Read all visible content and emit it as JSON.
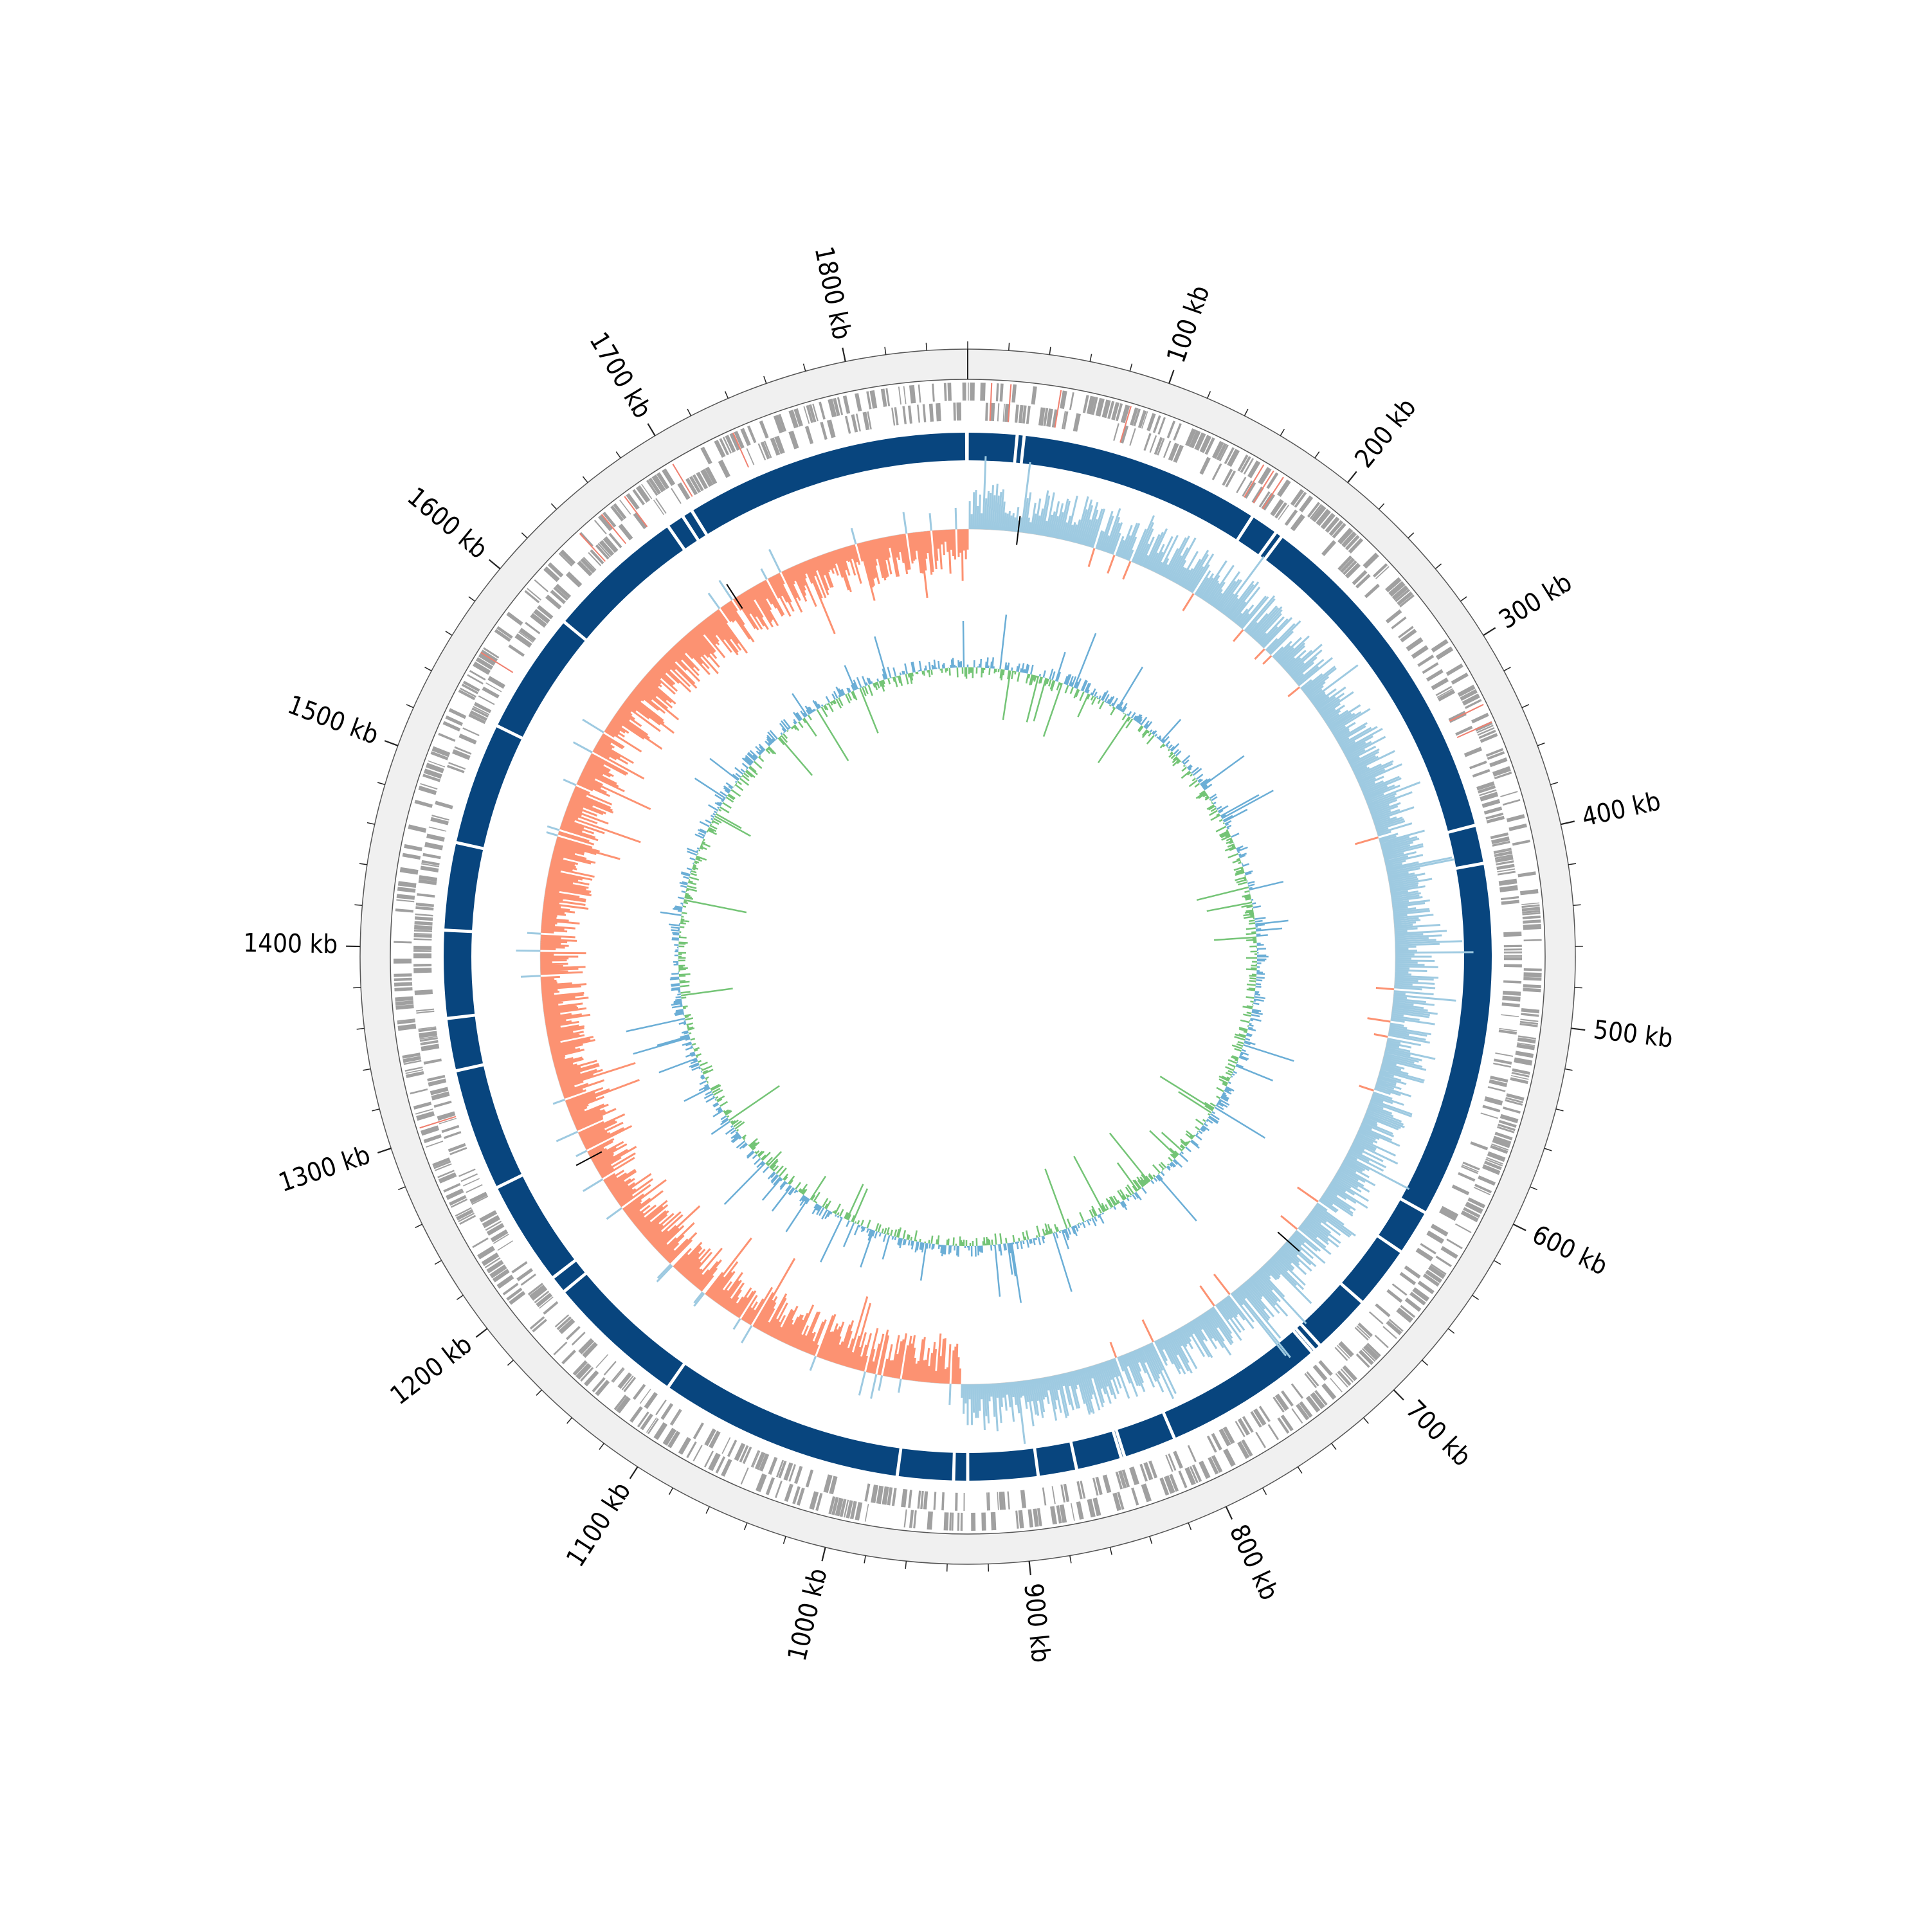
{
  "genome_plot": {
    "genome_length_kb": 1860,
    "position_labels": [
      "100 kb",
      "200 kb",
      "300 kb",
      "400 kb",
      "500 kb",
      "600 kb",
      "700 kb",
      "800 kb",
      "900 kb",
      "1000 kb",
      "1100 kb",
      "1200 kb",
      "1300 kb",
      "1400 kb",
      "1500 kb",
      "1600 kb",
      "1700 kb",
      "1800 kb"
    ],
    "minor_tick_interval_kb": 20,
    "colors": {
      "ring_background": "#f0f0f0",
      "genes": "#a0a0a0",
      "rna_genes": "#f08070",
      "contigs": "#08457e",
      "gc_skew_positive": "#9ecae1",
      "gc_skew_negative": "#fc9272",
      "gc_content_above": "#6baed6",
      "gc_content_below": "#74c476",
      "annotation_marks": "#000000"
    },
    "contig_gaps_kb": [
      28,
      32,
      170,
      186,
      190,
      390,
      412,
      616,
      642,
      678,
      712,
      716,
      718,
      810,
      840,
      842,
      868,
      890,
      930,
      938,
      970,
      1110,
      1190,
      1200,
      1260,
      1330,
      1360,
      1410,
      1460,
      1530,
      1600,
      1680,
      1690,
      1696
    ],
    "gc_skew_sign_changes_kb": [
      0,
      935
    ]
  }
}
